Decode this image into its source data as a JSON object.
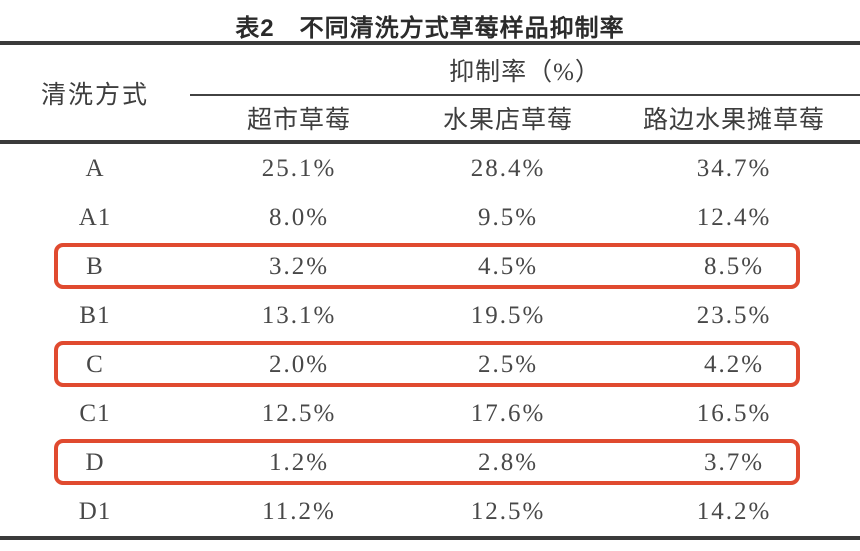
{
  "table": {
    "title": "表2　不同清洗方式草莓样品抑制率",
    "row_header": "清洗方式",
    "col_group_header": "抑制率（%）",
    "columns": [
      "超市草莓",
      "水果店草莓",
      "路边水果摊草莓"
    ],
    "rows": [
      {
        "method": "A",
        "values": [
          "25.1%",
          "28.4%",
          "34.7%"
        ],
        "highlighted": false
      },
      {
        "method": "A1",
        "values": [
          "8.0%",
          "9.5%",
          "12.4%"
        ],
        "highlighted": false
      },
      {
        "method": "B",
        "values": [
          "3.2%",
          "4.5%",
          "8.5%"
        ],
        "highlighted": true
      },
      {
        "method": "B1",
        "values": [
          "13.1%",
          "19.5%",
          "23.5%"
        ],
        "highlighted": false
      },
      {
        "method": "C",
        "values": [
          "2.0%",
          "2.5%",
          "4.2%"
        ],
        "highlighted": true
      },
      {
        "method": "C1",
        "values": [
          "12.5%",
          "17.6%",
          "16.5%"
        ],
        "highlighted": false
      },
      {
        "method": "D",
        "values": [
          "1.2%",
          "2.8%",
          "3.7%"
        ],
        "highlighted": true
      },
      {
        "method": "D1",
        "values": [
          "11.2%",
          "12.5%",
          "14.2%"
        ],
        "highlighted": false
      }
    ],
    "colors": {
      "highlight_border": "#e04a2f",
      "rule": "#3a3a3a",
      "text": "#3e3e3e"
    }
  },
  "chart_data": {
    "type": "table",
    "title": "表2　不同清洗方式草莓样品抑制率",
    "row_label": "清洗方式",
    "value_group_label": "抑制率（%）",
    "categories": [
      "超市草莓",
      "水果店草莓",
      "路边水果摊草莓"
    ],
    "series": [
      {
        "name": "A",
        "values": [
          25.1,
          28.4,
          34.7
        ]
      },
      {
        "name": "A1",
        "values": [
          8.0,
          9.5,
          12.4
        ]
      },
      {
        "name": "B",
        "values": [
          3.2,
          4.5,
          8.5
        ]
      },
      {
        "name": "B1",
        "values": [
          13.1,
          19.5,
          23.5
        ]
      },
      {
        "name": "C",
        "values": [
          2.0,
          2.5,
          4.2
        ]
      },
      {
        "name": "C1",
        "values": [
          12.5,
          17.6,
          16.5
        ]
      },
      {
        "name": "D",
        "values": [
          1.2,
          2.8,
          3.7
        ]
      },
      {
        "name": "D1",
        "values": [
          11.2,
          12.5,
          14.2
        ]
      }
    ],
    "highlighted_rows": [
      "B",
      "C",
      "D"
    ]
  }
}
